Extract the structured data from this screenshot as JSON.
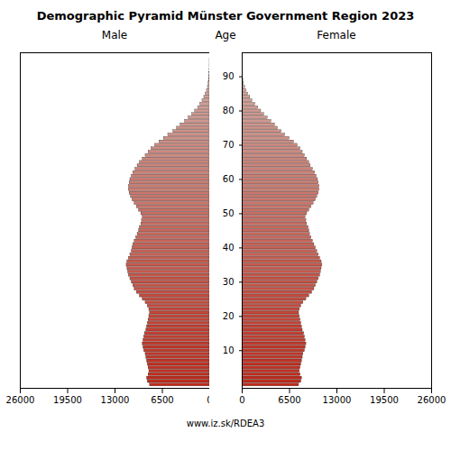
{
  "chart_data": {
    "type": "bar",
    "orientation": "horizontal",
    "title": "Demographic Pyramid Münster Government Region 2023",
    "y_label": "Age",
    "caption": "www.iz.sk/RDEA3",
    "grid": false,
    "categories": [
      0,
      1,
      2,
      3,
      4,
      5,
      6,
      7,
      8,
      9,
      10,
      11,
      12,
      13,
      14,
      15,
      16,
      17,
      18,
      19,
      20,
      21,
      22,
      23,
      24,
      25,
      26,
      27,
      28,
      29,
      30,
      31,
      32,
      33,
      34,
      35,
      36,
      37,
      38,
      39,
      40,
      41,
      42,
      43,
      44,
      45,
      46,
      47,
      48,
      49,
      50,
      51,
      52,
      53,
      54,
      55,
      56,
      57,
      58,
      59,
      60,
      61,
      62,
      63,
      64,
      65,
      66,
      67,
      68,
      69,
      70,
      71,
      72,
      73,
      74,
      75,
      76,
      77,
      78,
      79,
      80,
      81,
      82,
      83,
      84,
      85,
      86,
      87,
      88,
      89,
      90,
      91,
      92,
      93,
      94,
      95
    ],
    "ylim": [
      -1,
      97
    ],
    "yticks": [
      10,
      20,
      30,
      40,
      50,
      60,
      70,
      80,
      90
    ],
    "colors": [
      "#c0291a",
      "#c02a1b",
      "#c02b1c",
      "#c02d1e",
      "#c02e1f",
      "#c13021",
      "#c13122",
      "#c13224",
      "#c13425",
      "#c13527",
      "#c23728",
      "#c2382a",
      "#c23a2b",
      "#c23b2d",
      "#c23c2e",
      "#c33e30",
      "#c33f31",
      "#c34133",
      "#c34234",
      "#c44436",
      "#c44537",
      "#c44639",
      "#c4483a",
      "#c4493c",
      "#c54b3d",
      "#c54c3f",
      "#c54d40",
      "#c54f42",
      "#c55043",
      "#c65245",
      "#c65346",
      "#c65548",
      "#c65649",
      "#c6574b",
      "#c7594c",
      "#c75a4e",
      "#c75c4f",
      "#c75d51",
      "#c85f52",
      "#c86054",
      "#c86155",
      "#c86357",
      "#c86458",
      "#c9665a",
      "#c9675b",
      "#c9685d",
      "#c96a5e",
      "#c96b60",
      "#ca6d61",
      "#ca6e63",
      "#ca7064",
      "#ca7166",
      "#ca7267",
      "#cb7469",
      "#cb756a",
      "#cb776c",
      "#cb786d",
      "#cc7a6f",
      "#cc7b70",
      "#cc7c72",
      "#cc7e73",
      "#cc7f75",
      "#cd8176",
      "#cd8278",
      "#cd8379",
      "#cd857b",
      "#cd867c",
      "#ce887e",
      "#ce897f",
      "#ce8b81",
      "#ce8c82",
      "#ce8d84",
      "#cf8f85",
      "#cf9087",
      "#cf9288",
      "#cf938a",
      "#d0958b",
      "#d0968d",
      "#d0978e",
      "#d09990",
      "#d09a91",
      "#d19c93",
      "#d19d94",
      "#d19e96",
      "#d1a097",
      "#d1a199",
      "#d2a39a",
      "#d2a49c",
      "#d2a69d",
      "#d2a79f",
      "#d2a8a0",
      "#d3aaa2",
      "#d3aba3",
      "#d3ada5",
      "#d3aea6",
      "#d4b0a8"
    ],
    "series": [
      {
        "name": "Male",
        "xlim": [
          26000,
          0
        ],
        "xticks": [
          26000,
          19500,
          13000,
          6500,
          0
        ],
        "values": [
          8200,
          8500,
          8600,
          8400,
          8300,
          8400,
          8500,
          8600,
          8700,
          8800,
          9000,
          9100,
          9200,
          9100,
          9000,
          8900,
          8700,
          8600,
          8500,
          8400,
          8300,
          8200,
          8300,
          8500,
          8800,
          9200,
          9600,
          10000,
          10300,
          10500,
          10700,
          10900,
          11100,
          11200,
          11300,
          11400,
          11300,
          11100,
          10900,
          10700,
          10600,
          10500,
          10300,
          10100,
          9900,
          9700,
          9600,
          9400,
          9300,
          9200,
          9400,
          9700,
          10000,
          10300,
          10600,
          10800,
          11000,
          11100,
          11100,
          11000,
          10900,
          10700,
          10500,
          10200,
          9900,
          9600,
          9200,
          8800,
          8400,
          8000,
          7500,
          6900,
          6300,
          5700,
          5000,
          4500,
          4000,
          3400,
          2900,
          2400,
          2000,
          1600,
          1300,
          1000,
          750,
          550,
          380,
          250,
          150,
          90,
          50,
          28,
          14,
          6,
          2,
          1
        ]
      },
      {
        "name": "Female",
        "xlim": [
          0,
          26000
        ],
        "xticks": [
          0,
          6500,
          13000,
          19500,
          26000
        ],
        "values": [
          7800,
          8100,
          8200,
          8000,
          7900,
          8000,
          8100,
          8200,
          8300,
          8400,
          8600,
          8700,
          8800,
          8700,
          8600,
          8500,
          8300,
          8200,
          8100,
          8000,
          7900,
          7800,
          7900,
          8100,
          8400,
          8800,
          9200,
          9600,
          9900,
          10100,
          10300,
          10500,
          10700,
          10800,
          10900,
          11000,
          10900,
          10700,
          10500,
          10300,
          10100,
          9900,
          9700,
          9500,
          9300,
          9200,
          9100,
          8900,
          8800,
          8700,
          8900,
          9200,
          9500,
          9800,
          10100,
          10300,
          10500,
          10600,
          10600,
          10500,
          10400,
          10200,
          10000,
          9700,
          9400,
          9200,
          8900,
          8600,
          8300,
          8000,
          7600,
          7100,
          6500,
          5900,
          5400,
          4900,
          4500,
          4000,
          3500,
          3000,
          2600,
          2200,
          1800,
          1400,
          1100,
          820,
          580,
          390,
          240,
          140,
          80,
          42,
          18,
          7,
          3,
          1
        ]
      }
    ]
  }
}
